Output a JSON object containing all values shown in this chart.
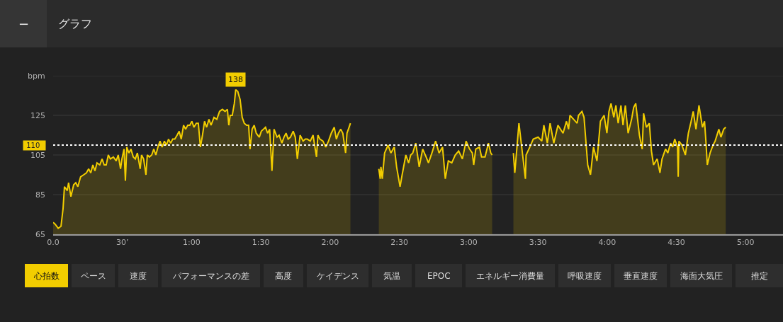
{
  "chart_data": {
    "type": "area",
    "title": "グラフ",
    "ylabel": "bpm",
    "x": [
      0,
      0.9,
      2.2,
      3.4,
      4.3,
      4.9,
      6.1,
      6.7,
      7.7,
      8.9,
      9.8,
      10.7,
      11.9,
      13.2,
      14.4,
      15.4,
      16.3,
      17.2,
      18.1,
      19.0,
      20.2,
      21.2,
      22.1,
      23.0,
      23.9,
      24.8,
      26.1,
      27.3,
      28.2,
      29.2,
      29.8,
      30.7,
      31.3,
      31.9,
      32.8,
      33.7,
      34.7,
      35.6,
      36.5,
      37.7,
      38.3,
      39.2,
      40.2,
      40.8,
      41.7,
      42.7,
      43.6,
      44.5,
      45.4,
      46.3,
      47.2,
      48.2,
      49.1,
      50.0,
      50.9,
      51.8,
      52.7,
      53.7,
      54.6,
      55.5,
      56.5,
      57.4,
      58.3,
      59.2,
      60.1,
      61.0,
      62.0,
      62.9,
      63.8,
      64.7,
      65.6,
      66.5,
      67.5,
      68.4,
      69.7,
      70.9,
      72.1,
      73.3,
      74.5,
      75.5,
      76.1,
      76.7,
      77.6,
      78.5,
      79.1,
      80.0,
      81.0,
      81.9,
      82.8,
      83.8,
      84.7,
      85.3,
      86.2,
      87.1,
      88.0,
      89.3,
      90.2,
      91.1,
      92.0,
      92.9,
      93.8,
      94.8,
      95.7,
      97.0,
      97.9,
      99.1,
      100.0,
      100.9,
      101.8,
      102.8,
      104.0,
      104.9,
      105.8,
      107.0,
      108.3,
      109.2,
      110.1,
      111.4,
      112.6,
      114.1,
      114.7,
      115.6,
      116.9,
      118.1,
      119.3,
      120.5,
      121.8,
      122.7,
      123.6,
      124.6,
      125.5,
      126.7,
      127.3,
      128.2,
      128.8,
      135.0,
      141.1,
      141.7,
      142.0,
      142.6,
      143.6,
      145.1,
      146.3,
      147.8,
      148.8,
      150.3,
      151.2,
      152.8,
      154.0,
      154.9,
      155.8,
      157.1,
      158.6,
      160.1,
      161.6,
      162.6,
      164.1,
      165.7,
      167.2,
      168.7,
      169.9,
      171.2,
      172.7,
      174.2,
      175.7,
      177.3,
      178.9,
      180.4,
      181.6,
      182.2,
      183.1,
      184.7,
      185.6,
      187.1,
      188.6,
      189.6,
      190.2,
      195.0,
      199.4,
      200.0,
      200.3,
      201.8,
      203.4,
      204.6,
      204.9,
      206.5,
      208.0,
      210.1,
      211.7,
      212.6,
      214.1,
      215.3,
      216.9,
      218.7,
      220.9,
      222.4,
      223.3,
      223.9,
      225.5,
      227.0,
      227.6,
      229.1,
      230.0,
      231.6,
      232.8,
      234.1,
      235.6,
      237.1,
      238.7,
      239.9,
      240.8,
      241.7,
      242.9,
      243.8,
      244.8,
      246.0,
      246.9,
      247.9,
      249.1,
      250.6,
      251.5,
      252.4,
      254.0,
      255.2,
      255.8,
      257.0,
      258.3,
      259.2,
      260.1,
      261.7,
      262.9,
      263.8,
      265.3,
      266.3,
      267.5,
      268.4,
      269.3,
      270.5,
      270.8,
      271.1,
      272.4,
      273.9,
      275.2,
      276.4,
      277.3,
      278.5,
      279.8,
      281.3,
      282.2,
      282.8,
      283.4,
      284.6,
      285.9,
      286.8,
      288.4,
      289.3,
      290.5,
      291.4
    ],
    "series": [
      {
        "color": "#f2cd00",
        "values": [
          71,
          70,
          68,
          69,
          78,
          89,
          87,
          91,
          84,
          90,
          91,
          89,
          94,
          95,
          96,
          98,
          96,
          100,
          97,
          101,
          100,
          103,
          100,
          100,
          105,
          103,
          104,
          102,
          105,
          98,
          103,
          108,
          92,
          109,
          106,
          108,
          104,
          103,
          106,
          98,
          105,
          103,
          95,
          105,
          104,
          105,
          108,
          105,
          109,
          112,
          109,
          112,
          110,
          113,
          111,
          113,
          113,
          115,
          117,
          113,
          120,
          118,
          120,
          120,
          122,
          119,
          121,
          121,
          109,
          115,
          122,
          119,
          123,
          120,
          124,
          123,
          127,
          128,
          127,
          128,
          120,
          125,
          125,
          131,
          138,
          137,
          133,
          124,
          121,
          120,
          120,
          108,
          118,
          120,
          116,
          114,
          117,
          118,
          119,
          116,
          118,
          97,
          118,
          114,
          115,
          111,
          114,
          116,
          113,
          114,
          117,
          114,
          103,
          115,
          112,
          113,
          113,
          112,
          115,
          104,
          115,
          113,
          112,
          109,
          112,
          116,
          119,
          113,
          116,
          118,
          116,
          106,
          116,
          119,
          121,
          null,
          98,
          93,
          99,
          93,
          106,
          110,
          106,
          109,
          99,
          89,
          95,
          105,
          101,
          105,
          106,
          111,
          99,
          108,
          104,
          101,
          106,
          112,
          106,
          109,
          93,
          102,
          101,
          105,
          107,
          103,
          112,
          108,
          106,
          100,
          108,
          109,
          104,
          104,
          111,
          106,
          105,
          null,
          106,
          96,
          100,
          121,
          105,
          93,
          105,
          109,
          113,
          114,
          112,
          120,
          111,
          121,
          111,
          120,
          116,
          122,
          118,
          125,
          123,
          121,
          125,
          127,
          124,
          100,
          95,
          109,
          102,
          122,
          125,
          116,
          127,
          131,
          124,
          130,
          121,
          130,
          120,
          130,
          116,
          123,
          129,
          131,
          115,
          108,
          126,
          119,
          121,
          107,
          100,
          103,
          96,
          103,
          108,
          106,
          111,
          109,
          113,
          109,
          94,
          112,
          110,
          105,
          116,
          122,
          127,
          118,
          130,
          119,
          122,
          112,
          100,
          106,
          110,
          112,
          118,
          114,
          118,
          119
        ]
      }
    ],
    "xlim": [
      0,
      316.2
    ],
    "xticks": [
      {
        "value": 0,
        "label": "0.0"
      },
      {
        "value": 30,
        "label": "30’"
      },
      {
        "value": 60,
        "label": "1:00"
      },
      {
        "value": 90,
        "label": "1:30"
      },
      {
        "value": 120,
        "label": "2:00"
      },
      {
        "value": 150,
        "label": "2:30"
      },
      {
        "value": 180,
        "label": "3:00"
      },
      {
        "value": 210,
        "label": "3:30"
      },
      {
        "value": 240,
        "label": "4:00"
      },
      {
        "value": 270,
        "label": "4:30"
      },
      {
        "value": 300,
        "label": "5:00"
      }
    ],
    "ylim": [
      65,
      145
    ],
    "yticks": [
      65,
      85,
      105,
      125,
      {
        "value": 145,
        "label": null
      }
    ],
    "grid": "y",
    "ref_lines": [
      {
        "axis": "y",
        "value": 110,
        "label": "110",
        "color": "#ffffff",
        "line_style": "dotted"
      }
    ],
    "annotations": [
      {
        "text": "138",
        "x": 79.1,
        "y": 138
      },
      "−",
      "心拍数",
      "ペース",
      "速度",
      "パフォーマンスの差",
      "高度",
      "ケイデンス",
      "気温",
      "EPOC",
      "エネルギー消費量",
      "呼吸速度",
      "垂直速度",
      "海面大気圧",
      "推定"
    ]
  }
}
